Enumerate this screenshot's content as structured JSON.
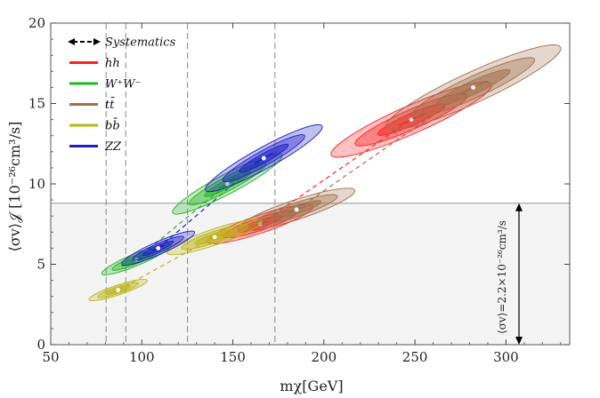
{
  "chart_data": {
    "type": "scatter",
    "title": "",
    "xlabel": "mχ[GeV]",
    "ylabel": "⟨σv⟩𝒥 [10⁻²⁶cm³/s]",
    "xlim": [
      50,
      335
    ],
    "ylim": [
      0,
      20
    ],
    "x_ticks": [
      "50",
      "100",
      "150",
      "200",
      "250",
      "300"
    ],
    "y_ticks": [
      "0",
      "5",
      "10",
      "15",
      "20"
    ],
    "threshold_line": {
      "y": 8.8,
      "label": "⟨σv⟩=2.2×10⁻²⁶cm³/s"
    },
    "vertical_lines": [
      80.4,
      91.2,
      125.1,
      173.1
    ],
    "legend": [
      {
        "label": "Systematics",
        "color": "#000000",
        "style": "dashed-arrow"
      },
      {
        "label": "hh",
        "color": "#ff2020"
      },
      {
        "label": "W⁺W⁻",
        "color": "#22b422"
      },
      {
        "label": "tt̄",
        "color": "#a0704a"
      },
      {
        "label": "bb̄",
        "color": "#bbb414"
      },
      {
        "label": "ZZ",
        "color": "#1e1ec8"
      }
    ],
    "series": [
      {
        "name": "hh",
        "color": "#ff2020",
        "points": [
          {
            "x": 165,
            "y": 7.5,
            "ax": 29,
            "ay": 1.1
          },
          {
            "x": 248,
            "y": 14.0,
            "ax": 44,
            "ay": 2.2
          }
        ]
      },
      {
        "name": "W⁺W⁻",
        "color": "#22b422",
        "points": [
          {
            "x": 97,
            "y": 5.3,
            "ax": 19,
            "ay": 0.9
          },
          {
            "x": 147,
            "y": 10.0,
            "ax": 30,
            "ay": 1.8
          }
        ]
      },
      {
        "name": "tt̄",
        "color": "#a0704a",
        "points": [
          {
            "x": 185,
            "y": 8.4,
            "ax": 32,
            "ay": 1.2
          },
          {
            "x": 282,
            "y": 16.0,
            "ax": 48,
            "ay": 2.5
          }
        ]
      },
      {
        "name": "bb̄",
        "color": "#bbb414",
        "points": [
          {
            "x": 87,
            "y": 3.4,
            "ax": 16,
            "ay": 0.6
          },
          {
            "x": 140,
            "y": 6.7,
            "ax": 26,
            "ay": 1.0
          }
        ]
      },
      {
        "name": "ZZ",
        "color": "#1e1ec8",
        "points": [
          {
            "x": 109,
            "y": 6.0,
            "ax": 20,
            "ay": 1.0
          },
          {
            "x": 167,
            "y": 11.6,
            "ax": 32,
            "ay": 2.0
          }
        ]
      }
    ]
  }
}
